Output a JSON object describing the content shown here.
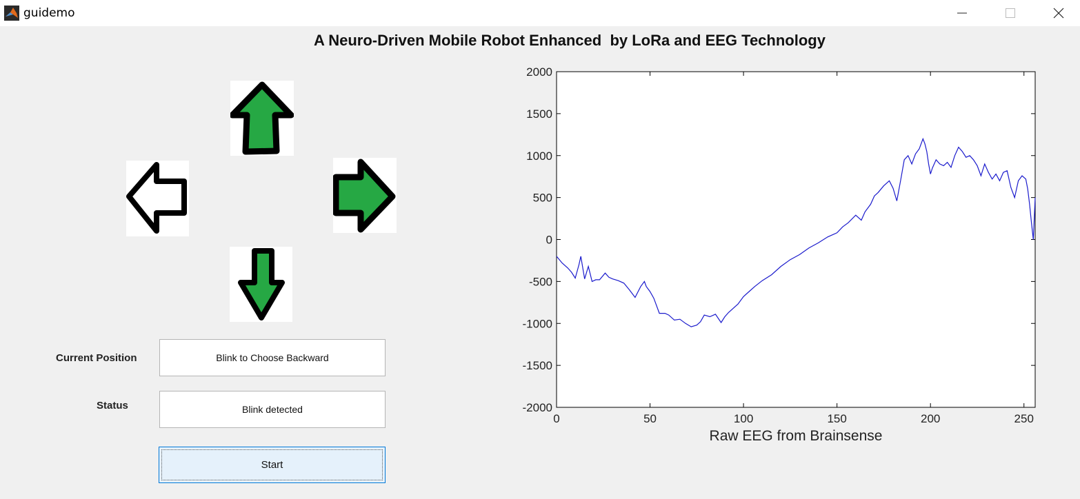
{
  "window": {
    "title": "guidemo"
  },
  "heading": "A Neuro-Driven Mobile Robot Enhanced  by LoRa and EEG Technology",
  "arrows": [
    {
      "name": "forward-arrow-icon",
      "direction": "up",
      "active": true
    },
    {
      "name": "left-arrow-icon",
      "direction": "left",
      "active": false
    },
    {
      "name": "right-arrow-icon",
      "direction": "right",
      "active": true
    },
    {
      "name": "backward-arrow-icon",
      "direction": "down",
      "active": true
    }
  ],
  "colors": {
    "arrow_active": "#26a844",
    "arrow_inactive": "#ffffff",
    "trace": "#1a1acc",
    "button_bg": "#e5f1fb",
    "button_border": "#0078d7"
  },
  "form": {
    "position_label": "Current Position",
    "position_value": "Blink to Choose Backward",
    "status_label": "Status",
    "status_value": "Blink detected",
    "start_label": "Start"
  },
  "chart_data": {
    "type": "line",
    "title": "",
    "xlabel": "Raw EEG from Brainsense",
    "ylabel": "",
    "xlim": [
      0,
      256
    ],
    "ylim": [
      -2000,
      2000
    ],
    "xticks": [
      0,
      50,
      100,
      150,
      200,
      250
    ],
    "yticks": [
      -2000,
      -1500,
      -1000,
      -500,
      0,
      500,
      1000,
      1500,
      2000
    ],
    "grid": false,
    "series": [
      {
        "x": [
          0,
          3,
          6,
          8,
          10,
          12,
          13,
          15,
          17,
          19,
          21,
          23,
          26,
          28,
          30,
          33,
          36,
          39,
          42,
          45,
          47,
          48,
          50,
          52,
          55,
          58,
          60,
          63,
          66,
          69,
          72,
          75,
          77,
          79,
          82,
          85,
          88,
          90,
          92,
          94,
          97,
          100,
          103,
          106,
          110,
          115,
          120,
          125,
          130,
          135,
          140,
          145,
          148,
          150,
          153,
          156,
          160,
          163,
          165,
          168,
          170,
          172,
          175,
          178,
          180,
          182,
          184,
          186,
          188,
          190,
          192,
          194,
          196,
          197,
          198,
          199,
          200,
          201,
          203,
          205,
          207,
          209,
          211,
          213,
          215,
          217,
          219,
          221,
          223,
          225,
          227,
          229,
          231,
          233,
          235,
          237,
          239,
          241,
          243,
          245,
          247,
          249,
          251,
          252,
          253,
          254,
          255,
          256
        ],
        "y": [
          -200,
          -280,
          -340,
          -390,
          -460,
          -300,
          -200,
          -470,
          -320,
          -500,
          -480,
          -480,
          -400,
          -450,
          -470,
          -490,
          -520,
          -600,
          -690,
          -560,
          -500,
          -560,
          -620,
          -700,
          -880,
          -880,
          -900,
          -960,
          -950,
          -1000,
          -1040,
          -1020,
          -980,
          -900,
          -920,
          -890,
          -990,
          -920,
          -870,
          -830,
          -770,
          -680,
          -620,
          -560,
          -490,
          -420,
          -320,
          -240,
          -180,
          -100,
          -40,
          30,
          60,
          80,
          150,
          200,
          290,
          230,
          330,
          420,
          520,
          560,
          640,
          700,
          610,
          460,
          700,
          950,
          1000,
          900,
          1020,
          1080,
          1200,
          1140,
          1050,
          900,
          780,
          850,
          950,
          900,
          880,
          920,
          860,
          1000,
          1100,
          1050,
          980,
          1000,
          950,
          880,
          760,
          900,
          800,
          720,
          780,
          700,
          800,
          820,
          620,
          500,
          700,
          760,
          720,
          600,
          420,
          200,
          0,
          500
        ]
      }
    ]
  }
}
